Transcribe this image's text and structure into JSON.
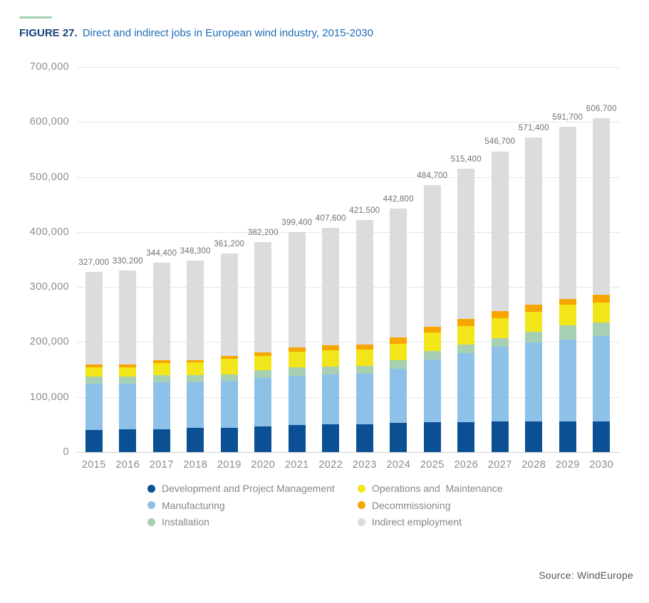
{
  "figure": {
    "label": "FIGURE 27.",
    "title": "Direct and indirect jobs in European wind industry, 2015-2030"
  },
  "source": "Source: WindEurope",
  "colors": {
    "accent_line": "#a5d3b3",
    "figure_label_text": "#16417f",
    "figure_title_text": "#1e6cb5",
    "axis_text": "#8a8c8f",
    "data_label_text": "#6e7073",
    "legend_text": "#85878a",
    "source_text": "#54565b",
    "gridline": "#e6e6e6"
  },
  "chart_data": {
    "type": "bar",
    "stacked": true,
    "title": "Direct and indirect jobs in European wind industry, 2015-2030",
    "xlabel": "",
    "ylabel": "",
    "ylim": [
      0,
      700000
    ],
    "grid": true,
    "legend_position": "bottom",
    "categories": [
      "2015",
      "2016",
      "2017",
      "2018",
      "2019",
      "2020",
      "2021",
      "2022",
      "2023",
      "2024",
      "2025",
      "2026",
      "2027",
      "2028",
      "2029",
      "2030"
    ],
    "series": [
      {
        "name": "Development and Project Management",
        "color": "#0b5094",
        "values": [
          40000,
          41000,
          41000,
          44000,
          44000,
          46000,
          49000,
          51000,
          51000,
          53000,
          55000,
          55000,
          56000,
          56000,
          56000,
          56000
        ]
      },
      {
        "name": "Manufacturing",
        "color": "#8dc1e8",
        "values": [
          84000,
          83000,
          86000,
          83000,
          85000,
          88000,
          90000,
          90000,
          92000,
          98000,
          113000,
          125000,
          135000,
          143000,
          149000,
          155000
        ]
      },
      {
        "name": "Installation",
        "color": "#a7d0b2",
        "values": [
          13000,
          13000,
          13000,
          13000,
          12000,
          15000,
          15000,
          14000,
          14000,
          16000,
          16000,
          15000,
          16000,
          20000,
          25000,
          25000
        ]
      },
      {
        "name": "Operations and  Maintenance",
        "color": "#f2e519",
        "values": [
          17000,
          17500,
          22000,
          22500,
          29000,
          26000,
          29000,
          30000,
          30000,
          30000,
          33000,
          34000,
          36000,
          36000,
          38000,
          36000
        ]
      },
      {
        "name": "Decommissioning",
        "color": "#f7a600",
        "values": [
          5000,
          5000,
          4500,
          4800,
          5200,
          6200,
          7400,
          8600,
          8500,
          10800,
          10700,
          12400,
          12700,
          12400,
          9700,
          13700
        ]
      },
      {
        "name": "Indirect employment",
        "color": "#dcdcdd",
        "values": [
          168000,
          170700,
          177900,
          181000,
          186000,
          201000,
          209000,
          214000,
          226000,
          235000,
          257000,
          274000,
          291000,
          304000,
          314000,
          321000
        ]
      }
    ],
    "totals": [
      327000,
      330200,
      344400,
      348300,
      361200,
      382200,
      399400,
      407600,
      421500,
      442800,
      484700,
      515400,
      546700,
      571400,
      591700,
      606700
    ],
    "total_labels": [
      "327,000",
      "330,200",
      "344,400",
      "348,300",
      "361,200",
      "382,200",
      "399,400",
      "407,600",
      "421,500",
      "442,800",
      "484,700",
      "515,400",
      "546,700",
      "571,400",
      "591,700",
      "606,700"
    ],
    "ytick_values": [
      700000,
      600000,
      500000,
      400000,
      300000,
      200000,
      100000,
      0
    ],
    "yticks": [
      "700,000",
      "600,000",
      "500,000",
      "400,000",
      "300,000",
      "200,000",
      "100,000",
      "0"
    ]
  },
  "legend": {
    "columns": [
      [
        0,
        1,
        2
      ],
      [
        3,
        4,
        5
      ]
    ]
  }
}
